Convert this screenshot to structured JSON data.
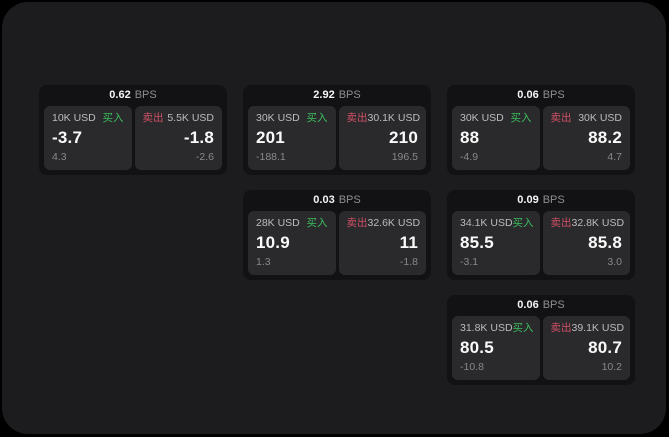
{
  "colors": {
    "page_background": "#000000",
    "panel_background": "#1c1c1e",
    "card_background": "#121214",
    "pane_background": "#2a2a2c",
    "buy_green": "#3bbf5f",
    "sell_red": "#cf4f66",
    "primary_text": "#fafafa",
    "secondary_text": "#8e8e93"
  },
  "cards": [
    {
      "bps": "0.62",
      "unit": "BPS",
      "buy": {
        "amount": "10K USD",
        "label": "买入",
        "value": "-3.7",
        "change": "4.3"
      },
      "sell": {
        "label": "卖出",
        "amount": "5.5K USD",
        "value": "-1.8",
        "change": "-2.6"
      }
    },
    {
      "bps": "2.92",
      "unit": "BPS",
      "buy": {
        "amount": "30K USD",
        "label": "买入",
        "value": "201",
        "change": "-188.1"
      },
      "sell": {
        "label": "卖出",
        "amount": "30.1K USD",
        "value": "210",
        "change": "196.5"
      }
    },
    {
      "bps": "0.06",
      "unit": "BPS",
      "buy": {
        "amount": "30K USD",
        "label": "买入",
        "value": "88",
        "change": "-4.9"
      },
      "sell": {
        "label": "卖出",
        "amount": "30K USD",
        "value": "88.2",
        "change": "4.7"
      }
    },
    {
      "bps": "0.03",
      "unit": "BPS",
      "buy": {
        "amount": "28K USD",
        "label": "买入",
        "value": "10.9",
        "change": "1.3"
      },
      "sell": {
        "label": "卖出",
        "amount": "32.6K USD",
        "value": "11",
        "change": "-1.8"
      }
    },
    {
      "bps": "0.09",
      "unit": "BPS",
      "buy": {
        "amount": "34.1K USD",
        "label": "买入",
        "value": "85.5",
        "change": "-3.1"
      },
      "sell": {
        "label": "卖出",
        "amount": "32.8K USD",
        "value": "85.8",
        "change": "3.0"
      }
    },
    {
      "bps": "0.06",
      "unit": "BPS",
      "buy": {
        "amount": "31.8K USD",
        "label": "买入",
        "value": "80.5",
        "change": "-10.8"
      },
      "sell": {
        "label": "卖出",
        "amount": "39.1K USD",
        "value": "80.7",
        "change": "10.2"
      }
    }
  ]
}
